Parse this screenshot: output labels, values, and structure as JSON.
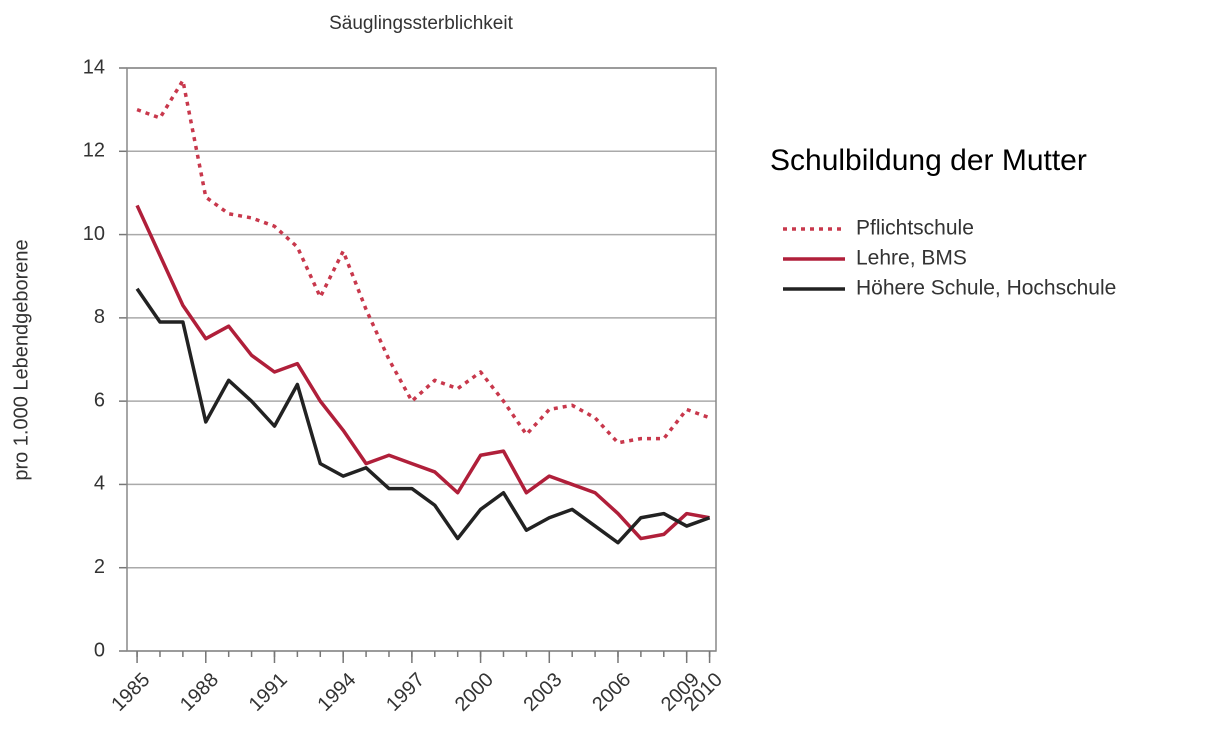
{
  "chart_data": {
    "type": "line",
    "title": "Säuglingssterblichkeit",
    "y_label": "pro 1.000 Lebendgeborene",
    "legend_title": "Schulbildung der Mutter",
    "x": [
      1985,
      1986,
      1987,
      1988,
      1989,
      1990,
      1991,
      1992,
      1993,
      1994,
      1995,
      1996,
      1997,
      1998,
      1999,
      2000,
      2001,
      2002,
      2003,
      2004,
      2005,
      2006,
      2007,
      2008,
      2009,
      2010
    ],
    "series": [
      {
        "name": "Pflichtschule",
        "color": "#c8384c",
        "style": "dotted",
        "values": [
          13.0,
          12.8,
          13.7,
          10.9,
          10.5,
          10.4,
          10.2,
          9.7,
          8.5,
          9.6,
          8.2,
          7.0,
          6.0,
          6.5,
          6.3,
          6.7,
          6.0,
          5.2,
          5.8,
          5.9,
          5.6,
          5.0,
          5.1,
          5.1,
          5.8,
          5.6
        ]
      },
      {
        "name": "Lehre, BMS",
        "color": "#b01f3a",
        "style": "solid",
        "values": [
          10.7,
          9.5,
          8.3,
          7.5,
          7.8,
          7.1,
          6.7,
          6.9,
          6.0,
          5.3,
          4.5,
          4.7,
          4.5,
          4.3,
          3.8,
          4.7,
          4.8,
          3.8,
          4.2,
          4.0,
          3.8,
          3.3,
          2.7,
          2.8,
          3.3,
          3.2
        ]
      },
      {
        "name": "Höhere Schule, Hochschule",
        "color": "#222222",
        "style": "solid",
        "values": [
          8.7,
          7.9,
          7.9,
          5.5,
          6.5,
          6.0,
          5.4,
          6.4,
          4.5,
          4.2,
          4.4,
          3.9,
          3.9,
          3.5,
          2.7,
          3.4,
          3.8,
          2.9,
          3.2,
          3.4,
          3.0,
          2.6,
          3.2,
          3.3,
          3.0,
          3.2
        ]
      }
    ],
    "xlim": [
      1984.56,
      2010.28
    ],
    "xticks": [
      1985,
      1988,
      1991,
      1994,
      1997,
      2000,
      2003,
      2006,
      2009,
      2010
    ],
    "ylim": [
      0,
      14
    ],
    "yticks": [
      0,
      2,
      4,
      6,
      8,
      10,
      12,
      14
    ],
    "grid": true,
    "legend": "right"
  }
}
